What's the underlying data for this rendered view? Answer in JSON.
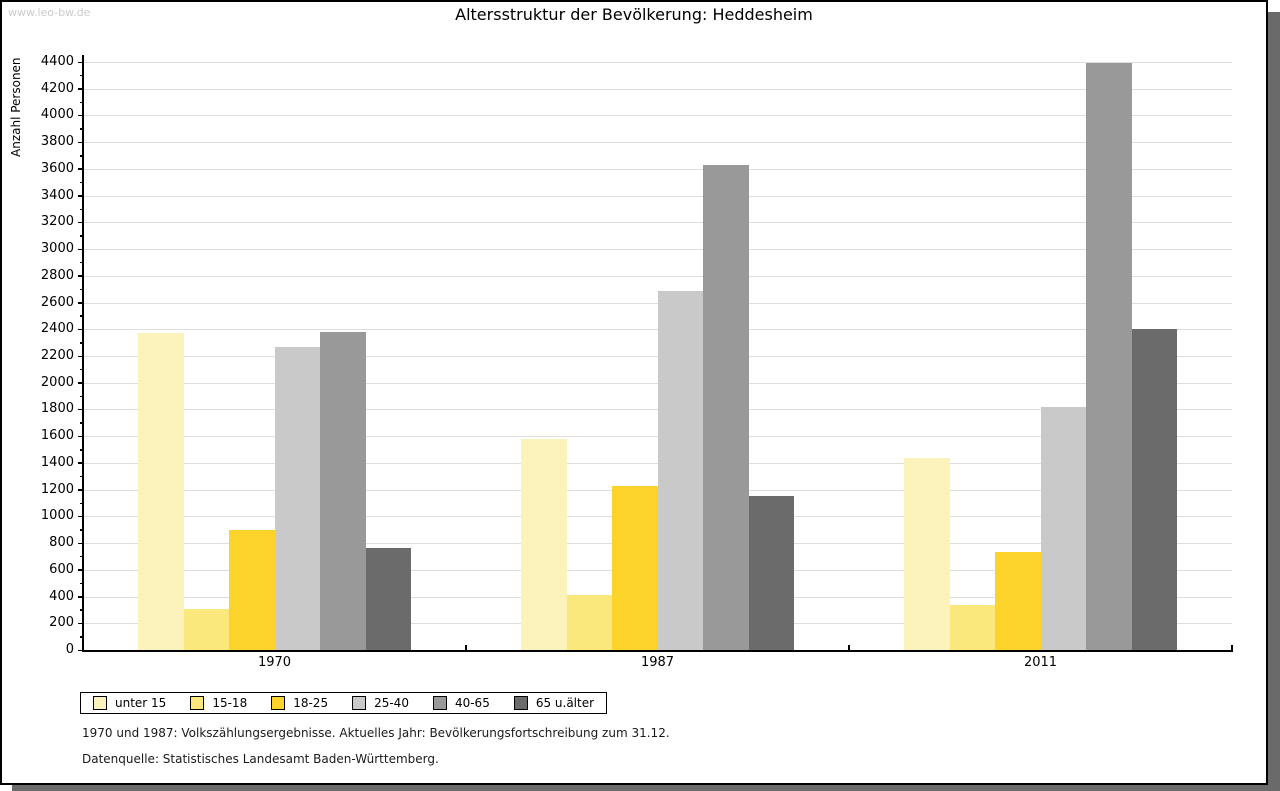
{
  "watermark": "www.leo-bw.de",
  "title": "Altersstruktur der Bevölkerung: Heddesheim",
  "chart_data": {
    "type": "bar",
    "title": "Altersstruktur der Bevölkerung: Heddesheim",
    "xlabel": "",
    "ylabel": "Anzahl Personen",
    "categories": [
      "1970",
      "1987",
      "2011"
    ],
    "series": [
      {
        "name": "unter 15",
        "color": "#FBF2BC",
        "values": [
          2370,
          1580,
          1440
        ]
      },
      {
        "name": "15-18",
        "color": "#FAE87C",
        "values": [
          310,
          410,
          340
        ]
      },
      {
        "name": "18-25",
        "color": "#FCD32B",
        "values": [
          900,
          1230,
          730
        ]
      },
      {
        "name": "25-40",
        "color": "#C9C9C9",
        "values": [
          2270,
          2690,
          1820
        ]
      },
      {
        "name": "40-65",
        "color": "#999999",
        "values": [
          2380,
          3630,
          4390
        ]
      },
      {
        "name": "65 u.älter",
        "color": "#6B6B6B",
        "values": [
          760,
          1150,
          2400
        ]
      }
    ],
    "ylim": [
      0,
      4400
    ],
    "yticks": [
      0,
      200,
      400,
      600,
      800,
      1000,
      1200,
      1400,
      1600,
      1800,
      2000,
      2200,
      2400,
      2600,
      2800,
      3000,
      3200,
      3400,
      3600,
      3800,
      4000,
      4200,
      4400
    ],
    "grid": true,
    "legend_position": "bottom-left",
    "gridline_color": "#DEDEDE",
    "axis_color": "#000000"
  },
  "footnotes": [
    "1970 und 1987: Volkszählungsergebnisse. Aktuelles Jahr: Bevölkerungsfortschreibung zum 31.12.",
    "Datenquelle: Statistisches Landesamt Baden-Württemberg."
  ]
}
